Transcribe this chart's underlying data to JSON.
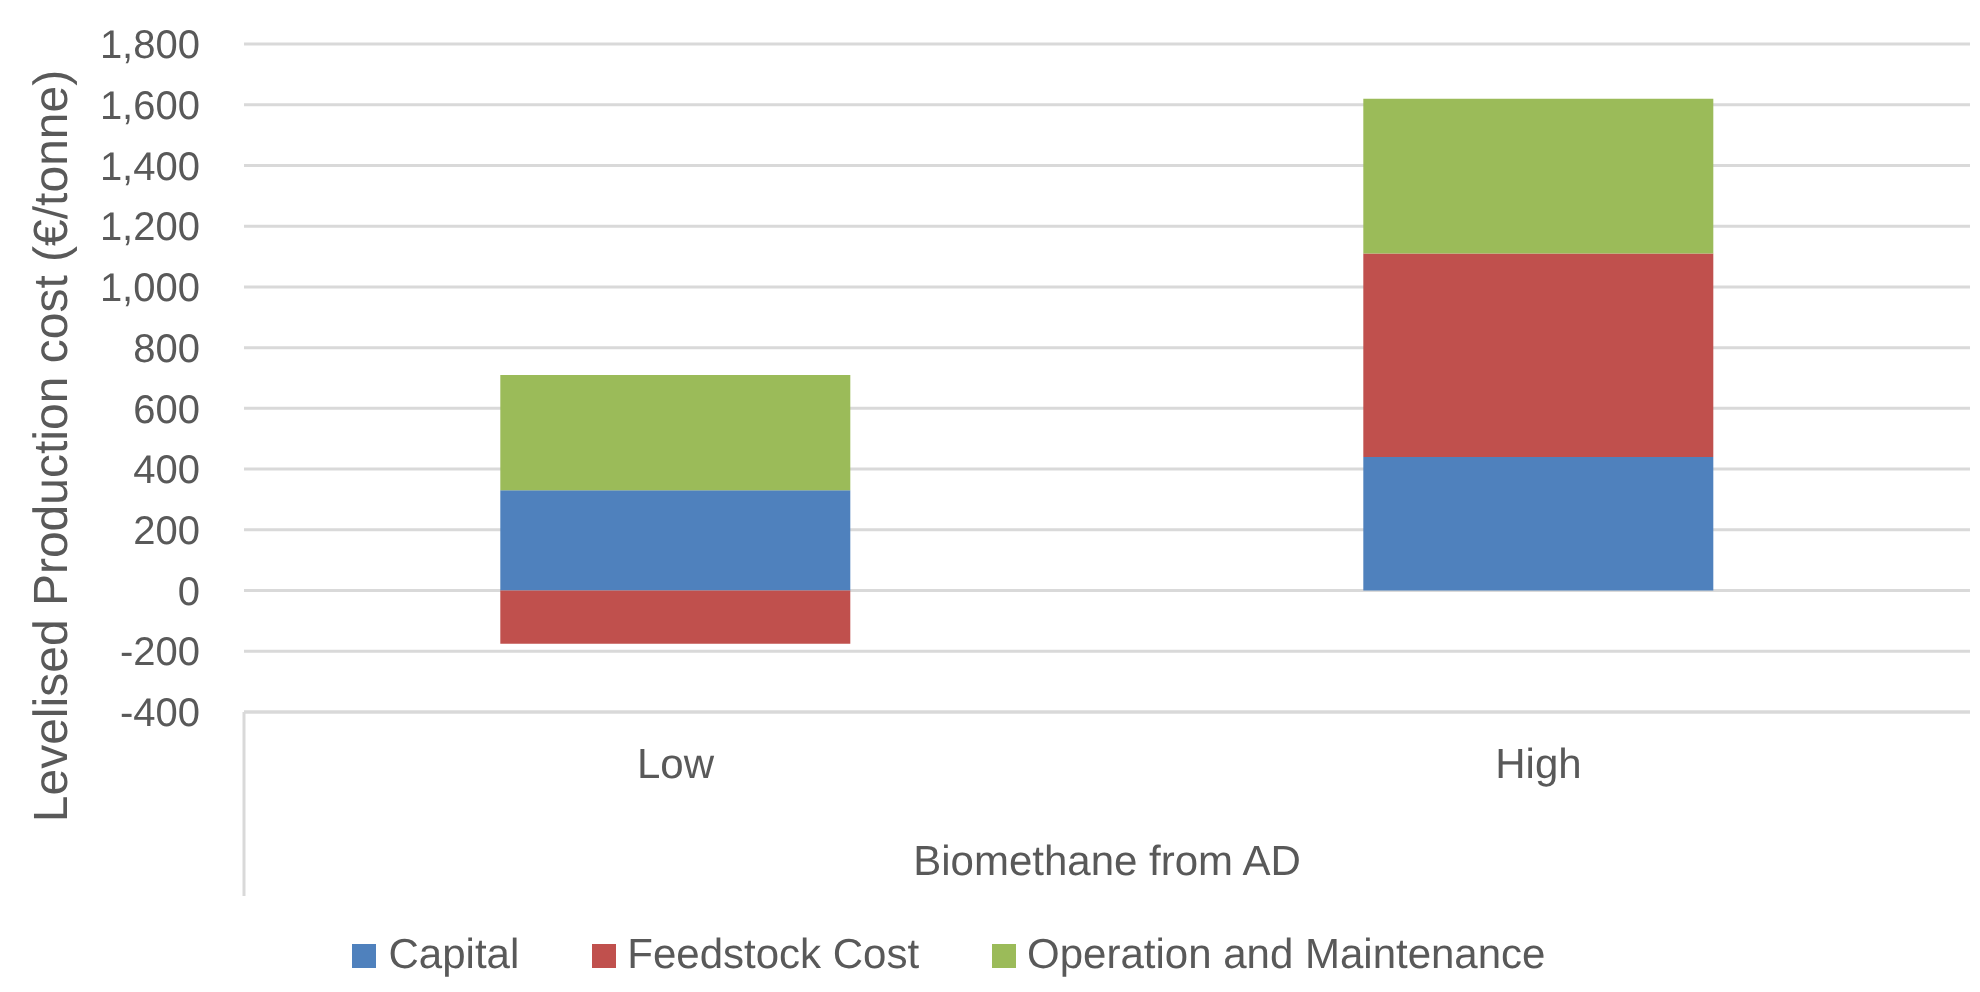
{
  "chart_data": {
    "type": "bar",
    "ylabel": "Levelised Production cost (€/tonne)",
    "xlabel": "Biomethane from AD",
    "categories": [
      "Low",
      "High"
    ],
    "series": [
      {
        "name": "Capital",
        "color": "#4f81bd",
        "values": [
          330,
          440
        ]
      },
      {
        "name": "Feedstock Cost",
        "color": "#c0504d",
        "values": [
          -175,
          670
        ]
      },
      {
        "name": "Operation and Maintenance",
        "color": "#9bbb59",
        "values": [
          380,
          510
        ]
      }
    ],
    "stacked": true,
    "ylim": [
      -400,
      1800
    ],
    "yticks": [
      -400,
      -200,
      0,
      200,
      400,
      600,
      800,
      {
        "value": 1000,
        "label": "1,000"
      },
      {
        "value": 1200,
        "label": "1,200"
      },
      {
        "value": 1400,
        "label": "1,400"
      },
      {
        "value": 1600,
        "label": "1,600"
      },
      {
        "value": 1800,
        "label": "1,800"
      }
    ],
    "grid": "y",
    "legend": "bottom"
  }
}
